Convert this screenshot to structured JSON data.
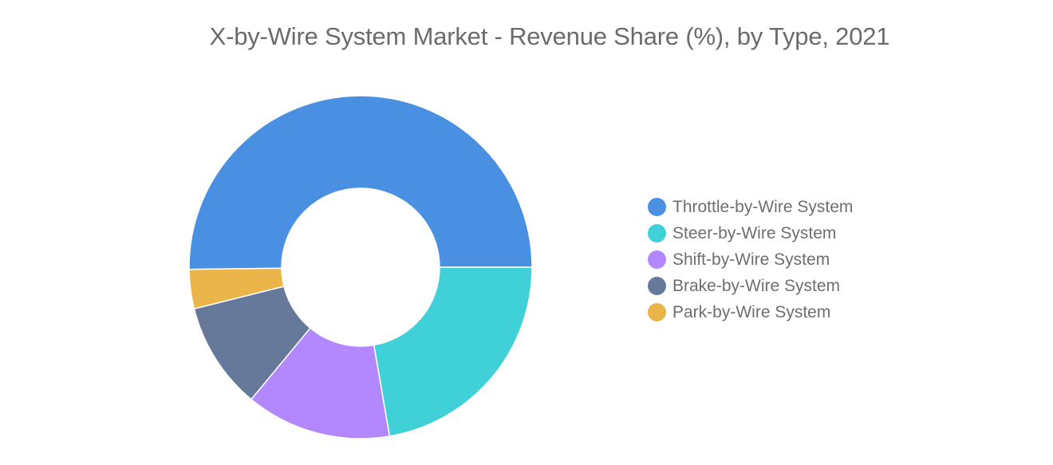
{
  "chart_data": {
    "type": "pie",
    "title": "X-by-Wire System Market - Revenue Share (%), by Type, 2021",
    "legend_position": "right",
    "donut": true,
    "categories": [
      "Throttle-by-Wire System",
      "Steer-by-Wire System",
      "Shift-by-Wire System",
      "Brake-by-Wire System",
      "Park-by-Wire System"
    ],
    "values": [
      50.2,
      22.3,
      13.7,
      10.1,
      3.7
    ],
    "colors": [
      "#4a90e2",
      "#40d0d8",
      "#b388ff",
      "#66799b",
      "#ebb54a"
    ],
    "start_angle_deg": -90
  }
}
